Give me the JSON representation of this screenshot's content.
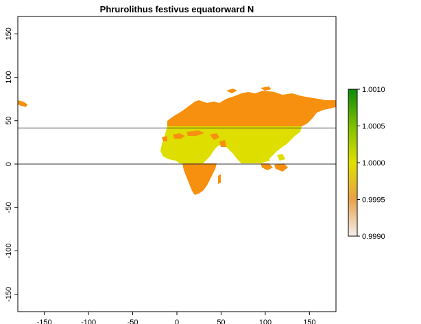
{
  "title": "Phrurolithus festivus equatorward N",
  "map": {
    "x_range": [
      -180,
      180
    ],
    "y_range": [
      -170,
      170
    ],
    "x_ticks": [
      "-150",
      "-100",
      "-50",
      "0",
      "50",
      "100",
      "150"
    ],
    "y_ticks": [
      "150",
      "100",
      "50",
      "0",
      "-50",
      "-100",
      "-150"
    ],
    "reference_lines_lat": [
      41.5,
      0
    ],
    "colors": {
      "north_region": "#f7900e",
      "south_region": "#f7900e",
      "band_region": "#dede00",
      "reference_line": "#333333"
    }
  },
  "legend": {
    "labels": [
      "1.0010",
      "1.0005",
      "1.0000",
      "0.9995",
      "0.9990"
    ],
    "gradient_stops": [
      {
        "value": "1.0010",
        "color": "#0b8a0b"
      },
      {
        "value": "1.0005",
        "color": "#7fbf00"
      },
      {
        "value": "1.0000",
        "color": "#e0e000"
      },
      {
        "value": "0.9995",
        "color": "#e8a04a"
      },
      {
        "value": "0.9990",
        "color": "#f4f0ee"
      }
    ]
  }
}
